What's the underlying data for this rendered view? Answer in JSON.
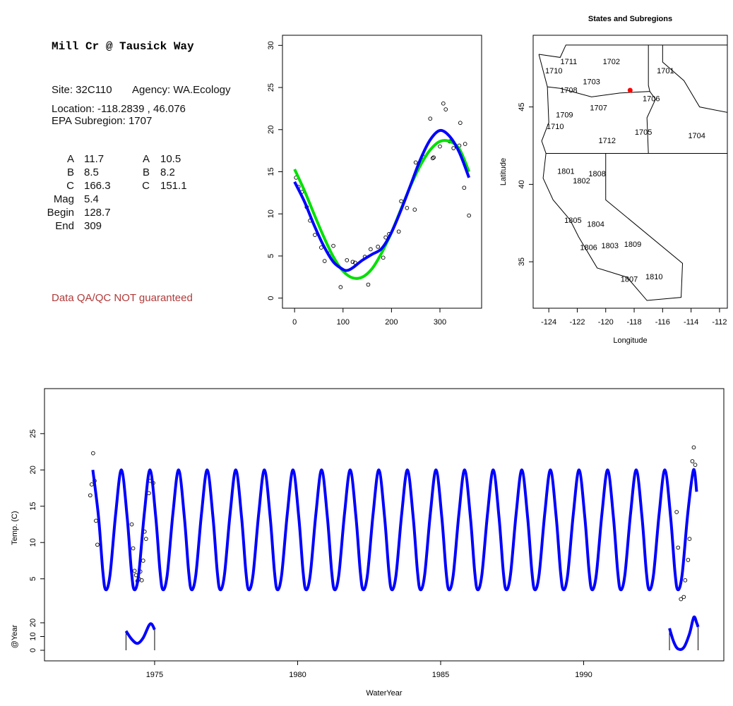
{
  "info": {
    "title": "Mill Cr @ Tausick Way",
    "site": "Site: 32C110",
    "agency": "Agency: WA.Ecology",
    "location": "Location: -118.2839 , 46.076",
    "subregion": "EPA Subregion: 1707",
    "params": [
      [
        "A",
        11.7,
        "A",
        10.5
      ],
      [
        "B",
        8.5,
        "B",
        8.2
      ],
      [
        "C",
        166.3,
        "C",
        151.1
      ],
      [
        "Mag",
        5.4
      ],
      [
        "Begin",
        128.7
      ],
      [
        "End",
        309
      ]
    ],
    "note": "Data QA/QC NOT guaranteed"
  },
  "chart_data": [
    {
      "type": "scatter",
      "xlim": [
        -25,
        386
      ],
      "ylim": [
        -1.2,
        31.2
      ],
      "xticks": [
        0,
        100,
        200,
        300
      ],
      "yticks": [
        0,
        5,
        10,
        15,
        20,
        25,
        30
      ],
      "points": {
        "color": "#000000",
        "x": [
          3,
          8,
          15,
          25,
          32,
          42,
          55,
          62,
          72,
          80,
          95,
          108,
          120,
          125,
          145,
          152,
          157,
          172,
          183,
          188,
          195,
          215,
          220,
          232,
          248,
          250,
          265,
          280,
          285,
          287,
          300,
          307,
          312,
          320,
          328,
          340,
          342,
          350,
          352,
          360
        ],
        "values": [
          14.3,
          13.2,
          12.6,
          10.8,
          9.2,
          7.5,
          6.0,
          4.4,
          5.3,
          6.2,
          1.3,
          4.5,
          4.3,
          4.2,
          4.9,
          1.6,
          5.8,
          6.1,
          4.8,
          7.2,
          7.6,
          7.9,
          11.5,
          10.7,
          10.5,
          16.1,
          16.8,
          21.3,
          16.6,
          16.7,
          18.0,
          23.1,
          22.4,
          18.6,
          17.8,
          18.1,
          20.8,
          13.1,
          18.3,
          9.8
        ]
      },
      "series": [
        {
          "color": "#00e000",
          "x": [
            0,
            20,
            40,
            60,
            80,
            100,
            120,
            140,
            160,
            180,
            200,
            220,
            240,
            260,
            280,
            300,
            320,
            340,
            360
          ],
          "values": [
            15.3,
            12.8,
            10.0,
            7.3,
            4.9,
            3.2,
            2.4,
            2.5,
            3.5,
            5.4,
            7.8,
            10.6,
            13.4,
            15.8,
            17.6,
            18.6,
            18.6,
            17.7,
            15.0
          ]
        },
        {
          "color": "#0000ff",
          "x": [
            0,
            20,
            40,
            60,
            80,
            100,
            110,
            120,
            140,
            160,
            180,
            200,
            220,
            240,
            260,
            280,
            300,
            320,
            340,
            360
          ],
          "values": [
            13.8,
            11.5,
            8.7,
            6.2,
            4.3,
            3.4,
            3.3,
            3.6,
            4.5,
            5.2,
            5.9,
            7.8,
            10.5,
            13.5,
            16.5,
            18.8,
            19.9,
            19.2,
            17.3,
            14.3
          ]
        }
      ]
    },
    {
      "type": "map",
      "title": "States and Subregions",
      "xlabel": "Longitude",
      "ylabel": "Latitude",
      "xlim": [
        -125.1,
        -111.45
      ],
      "ylim": [
        32.0,
        49.63
      ],
      "xticks": [
        -124,
        -122,
        -120,
        -118,
        -116,
        -114,
        -112
      ],
      "yticks": [
        35,
        40,
        45
      ],
      "regions": [
        "1702",
        "1701",
        "1711",
        "1710",
        "1703",
        "1708",
        "1706",
        "1707",
        "1709",
        "1710",
        "1705",
        "1704",
        "1712",
        "1801",
        "1808",
        "1802",
        "1805",
        "1804",
        "1806",
        "1803",
        "1809",
        "1810",
        "1807"
      ],
      "site": {
        "lon": -118.2839,
        "lat": 46.076,
        "color": "#ff0000"
      }
    },
    {
      "type": "line",
      "xlabel": "WaterYear",
      "ylabel": "Temp. (C)",
      "y2label": "@Year",
      "xlim": [
        1971.15,
        1994.9
      ],
      "ylim": [
        -6.3,
        31.2
      ],
      "y2lim": [
        -7.7,
        190.3
      ],
      "xticks": [
        1975,
        1980,
        1985,
        1990
      ],
      "yticks": [
        5,
        10,
        15,
        20,
        25
      ],
      "y2ticks": [
        0,
        10,
        20
      ],
      "series": [
        {
          "color": "#0000ff",
          "x": [
            1972.84,
            1973.04,
            1973.19,
            1973.29,
            1973.44,
            1973.64,
            1973.84,
            1974.04,
            1974.19,
            1974.29,
            1974.44,
            1974.64,
            1974.84,
            1975.04,
            1975.19,
            1975.29,
            1975.44,
            1975.64,
            1975.84,
            1976.04,
            1976.19,
            1976.29,
            1976.44,
            1976.64,
            1976.84,
            1977.04,
            1977.19,
            1977.29,
            1977.44,
            1977.64,
            1977.84,
            1978.04,
            1978.19,
            1978.29,
            1978.44,
            1978.64,
            1978.84,
            1979.04,
            1979.19,
            1979.29,
            1979.44,
            1979.64,
            1979.84,
            1980.04,
            1980.19,
            1980.29,
            1980.44,
            1980.64,
            1980.84,
            1981.04,
            1981.19,
            1981.29,
            1981.44,
            1981.64,
            1981.84,
            1982.04,
            1982.19,
            1982.29,
            1982.44,
            1982.64,
            1982.84,
            1983.04,
            1983.19,
            1983.29,
            1983.44,
            1983.64,
            1983.84,
            1984.04,
            1984.19,
            1984.29,
            1984.44,
            1984.64,
            1984.84,
            1985.04,
            1985.19,
            1985.29,
            1985.44,
            1985.64,
            1985.84,
            1986.04,
            1986.19,
            1986.29,
            1986.44,
            1986.64,
            1986.84,
            1987.04,
            1987.19,
            1987.29,
            1987.44,
            1987.64,
            1987.84,
            1988.04,
            1988.19,
            1988.29,
            1988.44,
            1988.64,
            1988.84,
            1989.04,
            1989.19,
            1989.29,
            1989.44,
            1989.64,
            1989.84,
            1990.04,
            1990.19,
            1990.29,
            1990.44,
            1990.64,
            1990.84,
            1991.04,
            1991.19,
            1991.29,
            1991.44,
            1991.64,
            1991.84,
            1992.04,
            1992.19,
            1992.29,
            1992.44,
            1992.64,
            1992.84,
            1993.04,
            1993.19,
            1993.29,
            1993.44,
            1993.64,
            1993.84,
            1993.95
          ],
          "values": [
            20,
            13.5,
            6,
            3.5,
            5.5,
            14,
            20,
            13.5,
            6,
            3.5,
            5.5,
            14,
            20,
            13.5,
            6,
            3.5,
            5.5,
            14,
            20,
            13.5,
            6,
            3.5,
            5.5,
            14,
            20,
            13.5,
            6,
            3.5,
            5.5,
            14,
            20,
            13.5,
            6,
            3.5,
            5.5,
            14,
            20,
            13.5,
            6,
            3.5,
            5.5,
            14,
            20,
            13.5,
            6,
            3.5,
            5.5,
            14,
            20,
            13.5,
            6,
            3.5,
            5.5,
            14,
            20,
            13.5,
            6,
            3.5,
            5.5,
            14,
            20,
            13.5,
            6,
            3.5,
            5.5,
            14,
            20,
            13.5,
            6,
            3.5,
            5.5,
            14,
            20,
            13.5,
            6,
            3.5,
            5.5,
            14,
            20,
            13.5,
            6,
            3.5,
            5.5,
            14,
            20,
            13.5,
            6,
            3.5,
            5.5,
            14,
            20,
            13.5,
            6,
            3.5,
            5.5,
            14,
            20,
            13.5,
            6,
            3.5,
            5.5,
            14,
            20,
            13.5,
            6,
            3.5,
            5.5,
            14,
            20,
            13.5,
            6,
            3.5,
            5.5,
            14,
            20,
            13.5,
            6,
            3.5,
            5.5,
            14,
            20,
            13.5,
            6,
            3.5,
            5.5,
            14,
            20,
            17
          ]
        },
        {
          "color": "#0000ff",
          "axis": "y2",
          "x": [
            1974.0,
            1974.2,
            1974.4,
            1974.6,
            1974.8,
            1974.9,
            1975.0
          ],
          "values": [
            14,
            8,
            5,
            9,
            18,
            19,
            15
          ]
        },
        {
          "color": "#0000ff",
          "axis": "y2",
          "x": [
            1993.0,
            1993.15,
            1993.3,
            1993.5,
            1993.7,
            1993.85,
            1993.95,
            1994.0
          ],
          "values": [
            16,
            6,
            1,
            2,
            12,
            24,
            20,
            17
          ]
        }
      ],
      "points": {
        "color": "#000000",
        "x": [
          1972.75,
          1972.8,
          1972.85,
          1972.9,
          1972.95,
          1973.0,
          1974.2,
          1974.25,
          1974.3,
          1974.35,
          1974.4,
          1974.45,
          1974.5,
          1974.55,
          1974.6,
          1974.65,
          1974.7,
          1974.8,
          1974.85,
          1974.95,
          1993.25,
          1993.3,
          1993.4,
          1993.5,
          1993.55,
          1993.65,
          1993.7,
          1993.8,
          1993.85,
          1993.9
        ],
        "values": [
          16.5,
          18,
          22.3,
          18.5,
          13,
          9.7,
          12.5,
          9.2,
          6.1,
          5.5,
          4.7,
          5.0,
          6.0,
          4.8,
          7.5,
          11.5,
          10.5,
          16.8,
          18.5,
          18.2,
          14.2,
          9.3,
          2.2,
          2.5,
          4.8,
          7.6,
          10.5,
          21.2,
          23.1,
          20.7
        ]
      }
    }
  ]
}
